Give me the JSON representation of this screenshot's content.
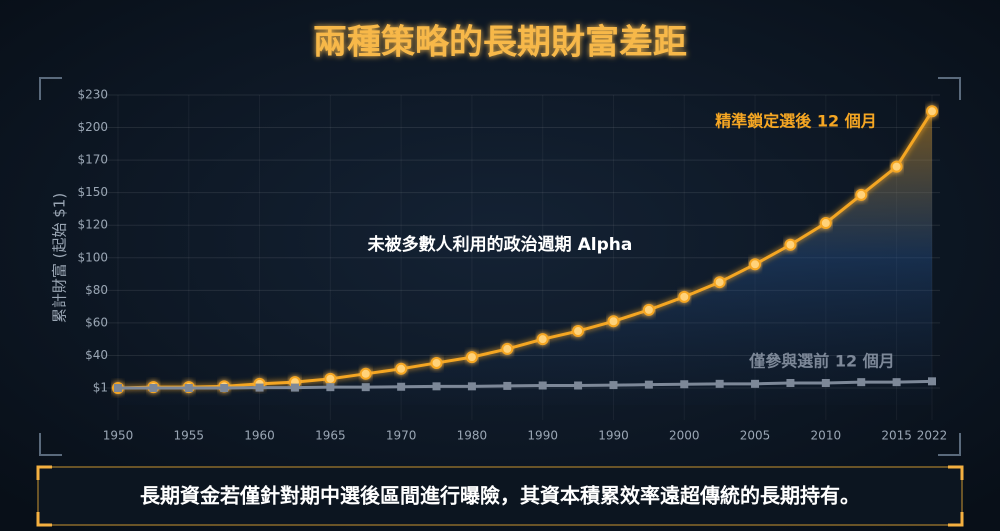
{
  "chart_data": {
    "type": "line",
    "title": "兩種策略的長期財富差距",
    "y_label": "累計財富 (起始 $1)",
    "annotation": "未被多數人利用的政治週期 Alpha",
    "caption": "長期資金若僅針對期中選後區間進行曝險，其資本積累效率遠超傳統的長期持有。",
    "categories": [
      "1950",
      null,
      "1955",
      null,
      "1960",
      null,
      "1965",
      null,
      "1970",
      null,
      "1980",
      null,
      "1990",
      null,
      "1990",
      null,
      "2000",
      null,
      "2005",
      null,
      "2010",
      null,
      "2015",
      "2022"
    ],
    "series": [
      {
        "name": "精準鎖定選後 12 個月",
        "color": "#f5a623",
        "values": [
          1,
          2,
          2,
          3,
          6,
          8,
          12,
          18,
          24,
          31,
          38,
          44,
          50,
          55,
          61,
          68,
          76,
          85,
          96,
          108,
          122,
          148,
          166,
          215
        ]
      },
      {
        "name": "僅參與選前 12 個月",
        "color": "#7d8898",
        "values": [
          1,
          1,
          1,
          1,
          1.5,
          1.5,
          2,
          2,
          2.5,
          3,
          3,
          3.5,
          4,
          4,
          4.5,
          5,
          5.5,
          6,
          6,
          7,
          7,
          8,
          8,
          9
        ]
      }
    ],
    "ylim": [
      1,
      230
    ],
    "yticks": [
      {
        "value": 1,
        "label": "$1"
      },
      {
        "value": 40,
        "label": "$40"
      },
      {
        "value": 60,
        "label": "$60"
      },
      {
        "value": 80,
        "label": "$80"
      },
      {
        "value": 100,
        "label": "$100"
      },
      {
        "value": 120,
        "label": "$120"
      },
      {
        "value": 150,
        "label": "$150"
      },
      {
        "value": 170,
        "label": "$170"
      },
      {
        "value": 200,
        "label": "$200"
      },
      {
        "value": 230,
        "label": "$230"
      }
    ],
    "grid": true
  }
}
